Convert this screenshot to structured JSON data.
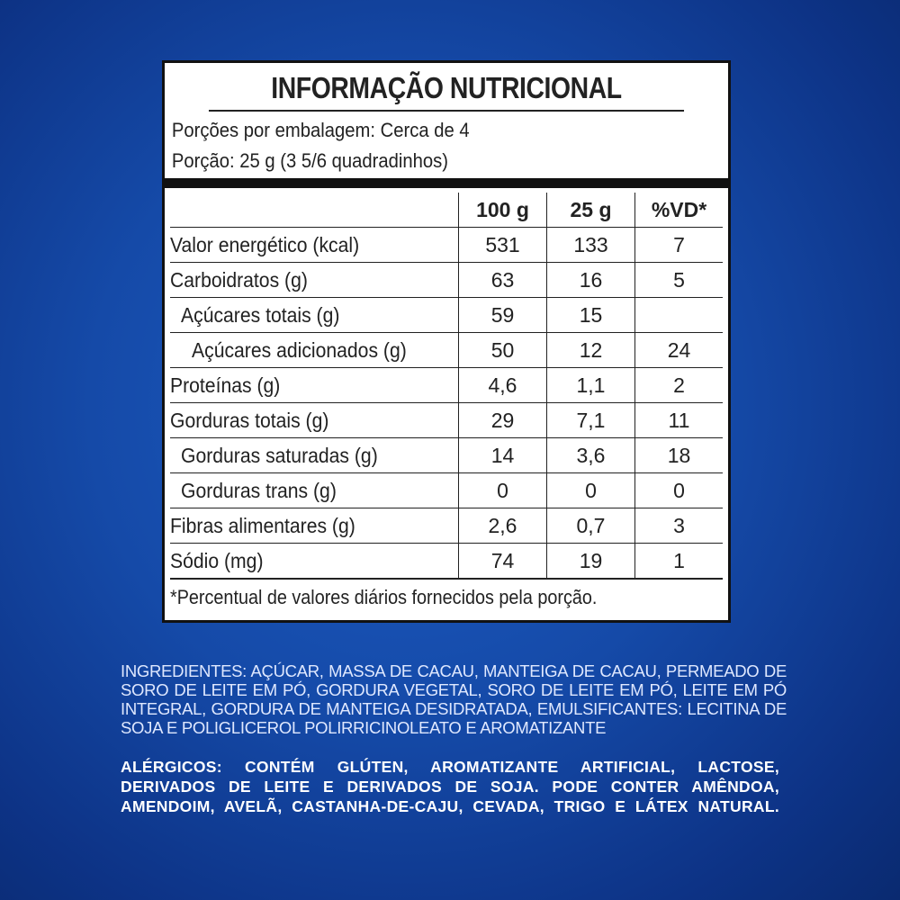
{
  "panel": {
    "title": "INFORMAÇÃO NUTRICIONAL",
    "servings_per_package": "Porções por embalagem: Cerca de 4",
    "serving_size": "Porção: 25 g (3 5/6 quadradinhos)",
    "columns": [
      "",
      "100 g",
      "25 g",
      "%VD*"
    ],
    "rows": [
      {
        "label": "Valor energético (kcal)",
        "indent": 0,
        "v100": "531",
        "v25": "133",
        "vd": "7"
      },
      {
        "label": "Carboidratos (g)",
        "indent": 0,
        "v100": "63",
        "v25": "16",
        "vd": "5"
      },
      {
        "label": "Açúcares totais (g)",
        "indent": 1,
        "v100": "59",
        "v25": "15",
        "vd": ""
      },
      {
        "label": "Açúcares adicionados (g)",
        "indent": 2,
        "v100": "50",
        "v25": "12",
        "vd": "24"
      },
      {
        "label": "Proteínas (g)",
        "indent": 0,
        "v100": "4,6",
        "v25": "1,1",
        "vd": "2"
      },
      {
        "label": "Gorduras totais (g)",
        "indent": 0,
        "v100": "29",
        "v25": "7,1",
        "vd": "11"
      },
      {
        "label": "Gorduras saturadas (g)",
        "indent": 1,
        "v100": "14",
        "v25": "3,6",
        "vd": "18"
      },
      {
        "label": "Gorduras trans (g)",
        "indent": 1,
        "v100": "0",
        "v25": "0",
        "vd": "0"
      },
      {
        "label": "Fibras alimentares (g)",
        "indent": 0,
        "v100": "2,6",
        "v25": "0,7",
        "vd": "3"
      },
      {
        "label": "Sódio (mg)",
        "indent": 0,
        "v100": "74",
        "v25": "19",
        "vd": "1"
      }
    ],
    "footnote": "*Percentual de valores diários fornecidos pela porção."
  },
  "ingredients": "INGREDIENTES: AÇÚCAR, MASSA DE CACAU, MANTEIGA DE CACAU, PERMEADO DE SORO DE LEITE EM PÓ, GORDURA VEGETAL, SORO DE LEITE EM PÓ, LEITE EM PÓ INTEGRAL, GORDURA DE MANTEIGA DESIDRATADA, EMULSIFICANTES: LECITINA DE SOJA E POLIGLICEROL POLIRRICINOLEATO E AROMATIZANTE",
  "allergens": "ALÉRGICOS: CONTÉM GLÚTEN, AROMATIZANTE ARTIFICIAL, LACTOSE, DERIVADOS DE LEITE E DERIVADOS DE SOJA. PODE CONTER AMÊNDOA, AMENDOIM, AVELÃ, CASTANHA-DE-CAJU, CEVADA, TRIGO E LÁTEX NATURAL.",
  "colors": {
    "background": "#154aa8",
    "panel": "#ffffff",
    "text": "#222222"
  }
}
